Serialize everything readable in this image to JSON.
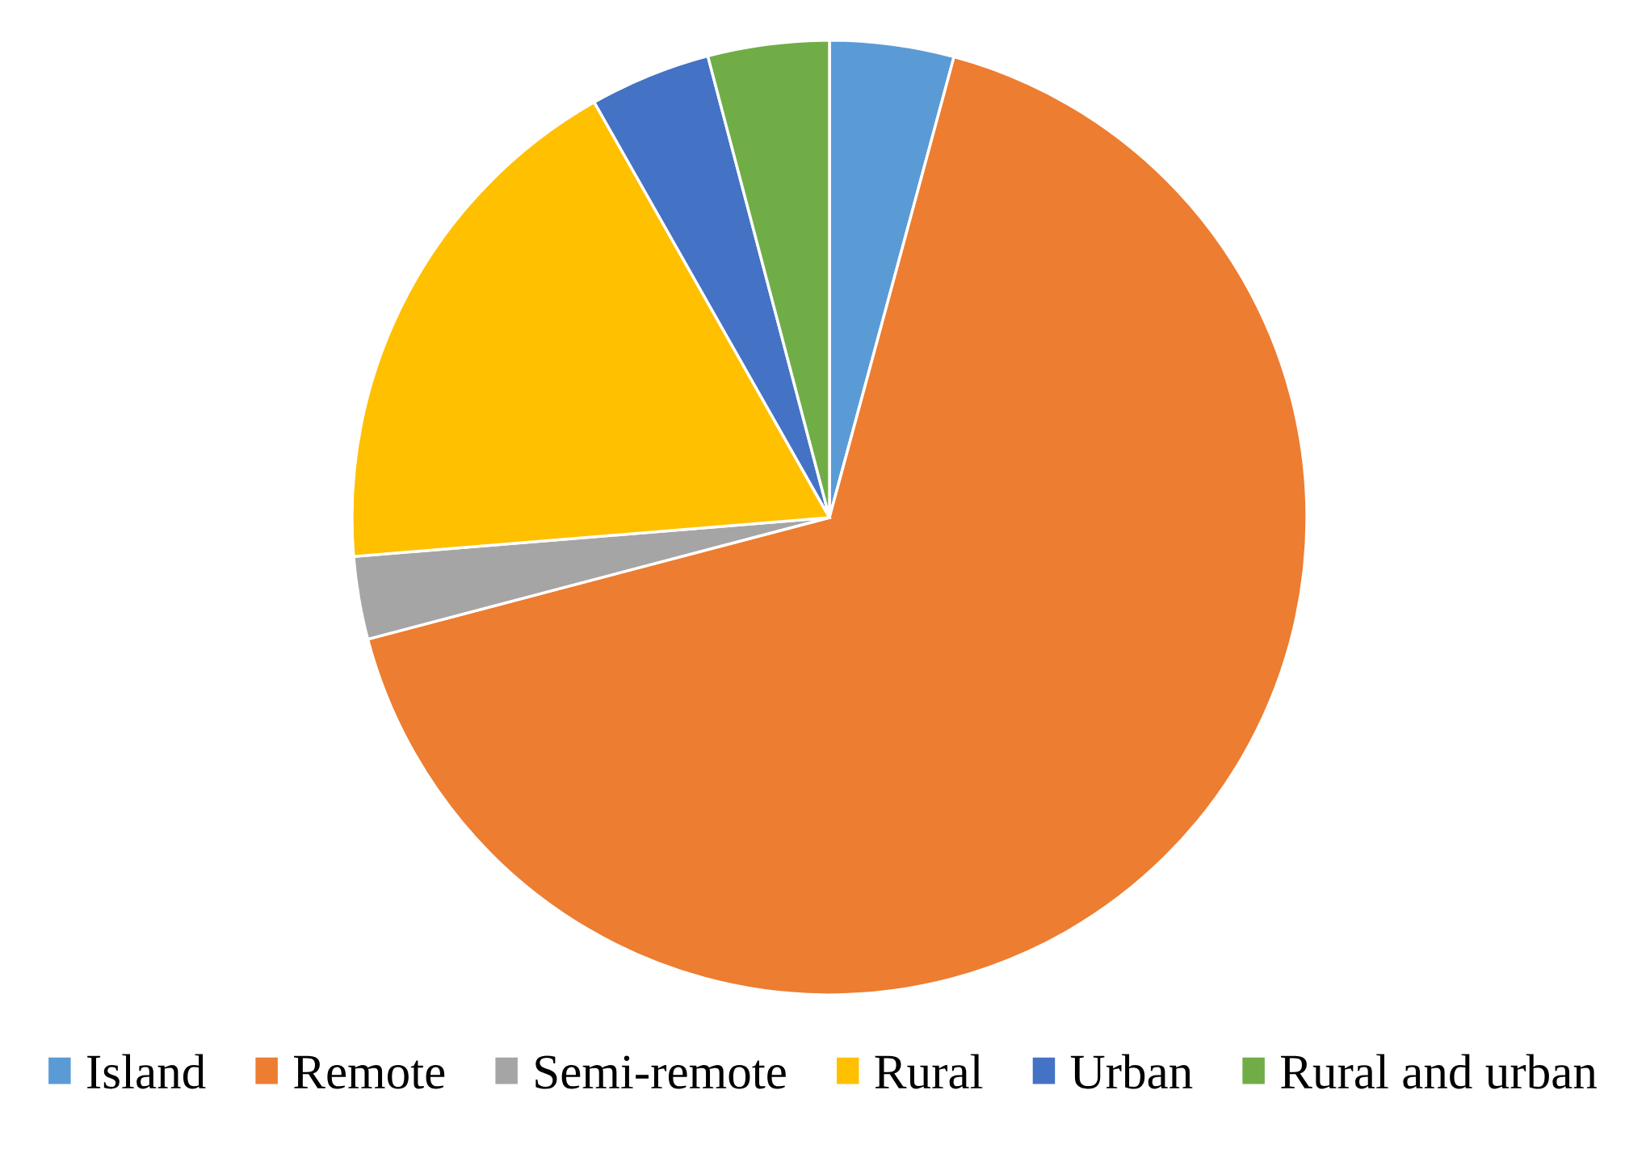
{
  "chart_data": {
    "type": "pie",
    "categories": [
      "Island",
      "Remote",
      "Semi-remote",
      "Rural",
      "Urban",
      "Rural and urban"
    ],
    "values": [
      4.2,
      66.7,
      2.8,
      18.1,
      4.1,
      4.1
    ],
    "colors": [
      "#5b9bd5",
      "#ed7d31",
      "#a5a5a5",
      "#ffc000",
      "#4472c4",
      "#70ad47"
    ],
    "legend": "bottom"
  }
}
